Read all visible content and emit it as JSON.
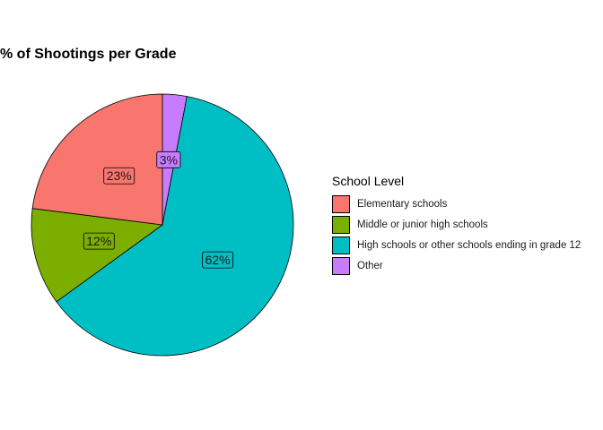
{
  "chart_data": {
    "type": "pie",
    "title": "% of Shootings per Grade",
    "legend_title": "School Level",
    "legend_position": "right",
    "slices": [
      {
        "name": "Other",
        "value": 3,
        "label": "3%",
        "color": "#C77CFF"
      },
      {
        "name": "High schools or other schools ending in grade 12",
        "value": 62,
        "label": "62%",
        "color": "#00BFC4"
      },
      {
        "name": "Middle or junior high schools",
        "value": 12,
        "label": "12%",
        "color": "#7CAE00"
      },
      {
        "name": "Elementary schools",
        "value": 23,
        "label": "23%",
        "color": "#F8766D"
      }
    ],
    "legend_order": [
      "Elementary schools",
      "Middle or junior high schools",
      "High schools or other schools ending in grade 12",
      "Other"
    ]
  }
}
